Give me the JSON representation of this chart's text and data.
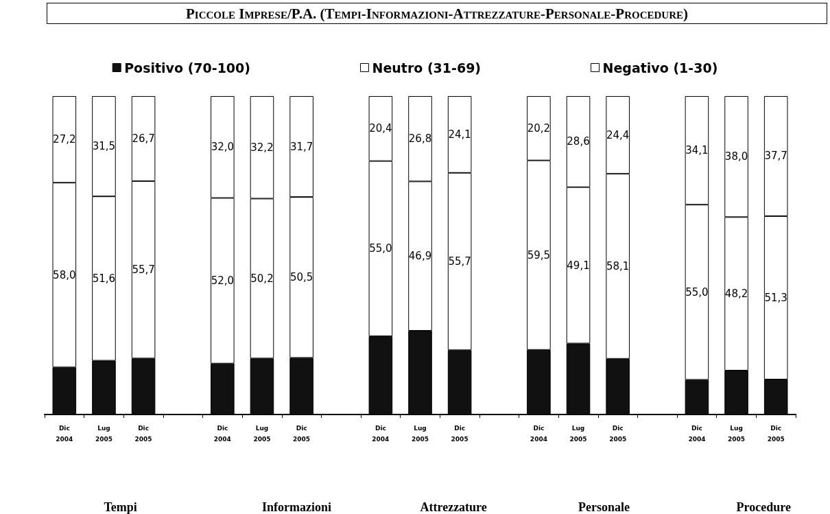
{
  "chart_data": {
    "type": "bar",
    "title": "Piccole Imprese/P.A. (Tempi-Informazioni-Attrezzature-Personale-Procedure)",
    "categories": [
      "Dic\n2004",
      "Lug\n2005",
      "Dic\n2005",
      null,
      "Dic\n2004",
      "Lug\n2005",
      "Dic\n2005",
      null,
      "Dic\n2004",
      "Lug\n2005",
      "Dic\n2005",
      null,
      "Dic\n2004",
      "Lug\n2005",
      "Dic\n2005",
      null,
      "Dic\n2004",
      "Lug\n2005",
      "Dic\n2005"
    ],
    "stacked": true,
    "series": [
      {
        "name": "Positivo (70-100)",
        "color": "#111111",
        "values": [
          14.8,
          16.9,
          17.6,
          null,
          16.0,
          17.6,
          17.8,
          null,
          24.6,
          26.3,
          20.2,
          null,
          20.3,
          22.3,
          17.5,
          null,
          10.9,
          13.8,
          11.0
        ]
      },
      {
        "name": "Neutro (31-69)",
        "color": "#ffffff",
        "values": [
          58.0,
          51.6,
          55.7,
          null,
          52.0,
          50.2,
          50.5,
          null,
          55.0,
          46.9,
          55.7,
          null,
          59.5,
          49.1,
          58.1,
          null,
          55.0,
          48.2,
          51.3
        ],
        "value_labels": [
          "58,0",
          "51,6",
          "55,7",
          null,
          "52,0",
          "50,2",
          "50,5",
          null,
          "55,0",
          "46,9",
          "55,7",
          null,
          "59,5",
          "49,1",
          "58,1",
          null,
          "55,0",
          "48,2",
          "51,3"
        ]
      },
      {
        "name": "Negativo (1-30)",
        "color": "#ffffff",
        "values": [
          27.2,
          31.5,
          26.7,
          null,
          32.0,
          32.2,
          31.7,
          null,
          20.4,
          26.8,
          24.1,
          null,
          20.2,
          28.6,
          24.4,
          null,
          34.1,
          38.0,
          37.7
        ],
        "value_labels": [
          "27,2",
          "31,5",
          "26,7",
          null,
          "32,0",
          "32,2",
          "31,7",
          null,
          "20,4",
          "26,8",
          "24,1",
          null,
          "20,2",
          "28,6",
          "24,4",
          null,
          "34,1",
          "38,0",
          "37,7"
        ]
      }
    ],
    "tick_labels": "x",
    "legend": "top",
    "grid": false,
    "annotations": [
      "Tempi",
      "Informazioni",
      "Attrezzature",
      "Personale",
      "Procedure"
    ]
  }
}
